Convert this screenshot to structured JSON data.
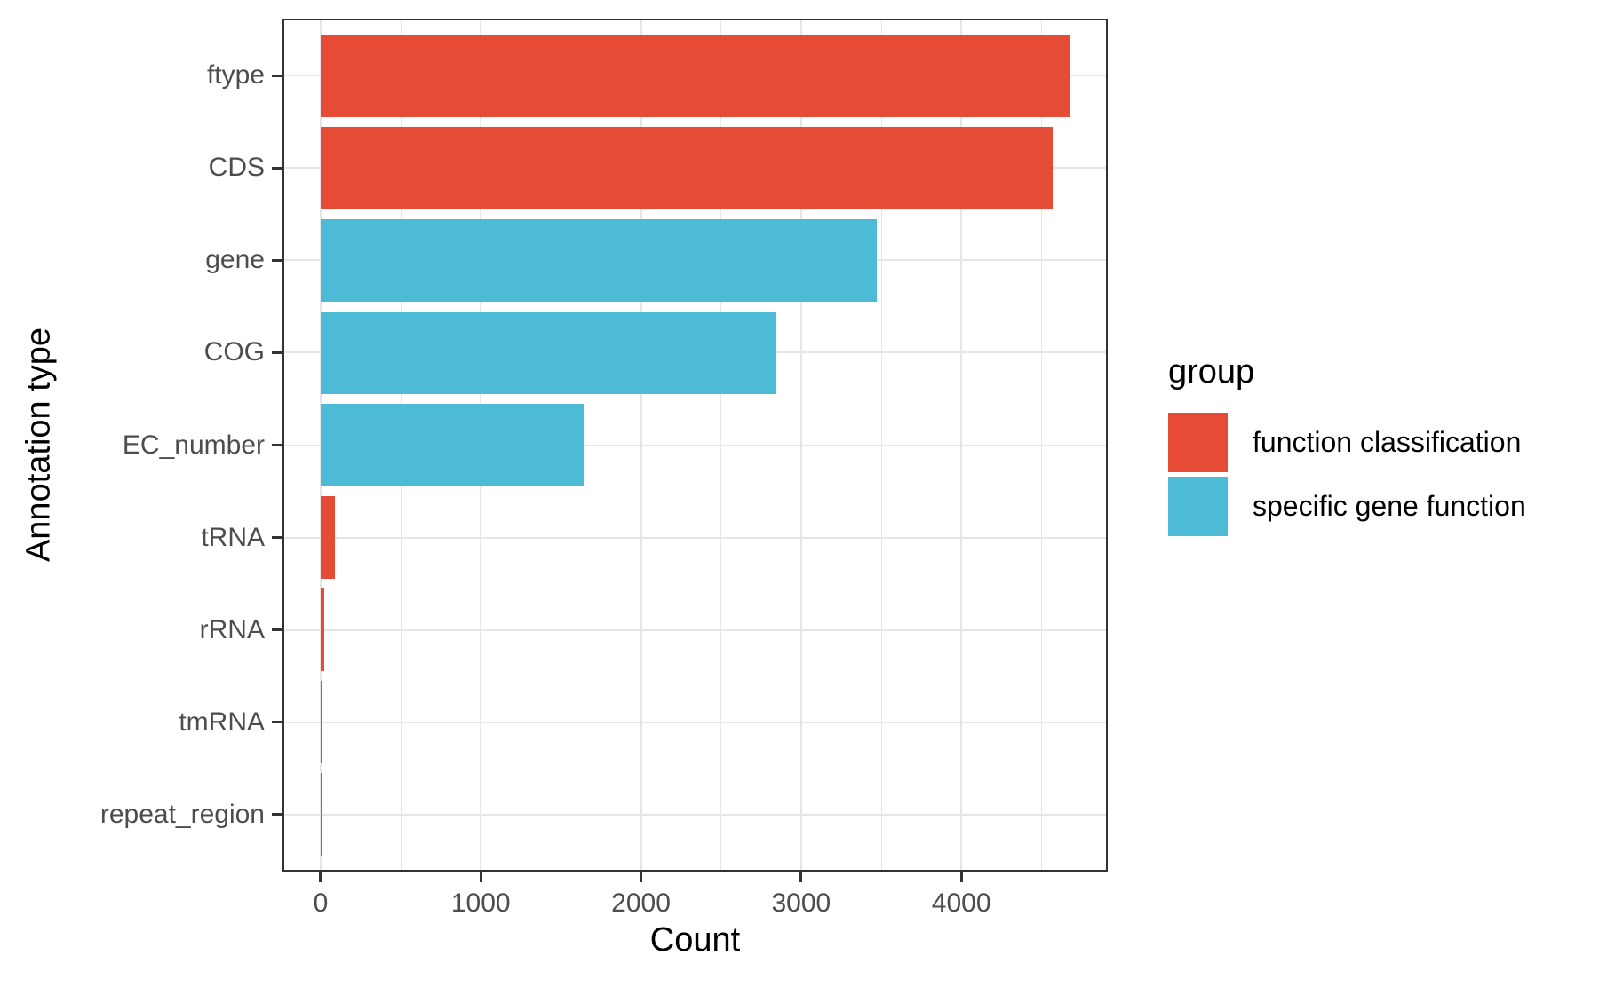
{
  "chart_data": {
    "type": "bar",
    "orientation": "horizontal",
    "title": "",
    "xlabel": "Count",
    "ylabel": "Annotation type",
    "categories": [
      "ftype",
      "CDS",
      "gene",
      "COG",
      "EC_number",
      "tRNA",
      "rRNA",
      "tmRNA",
      "repeat_region"
    ],
    "values": [
      4680,
      4570,
      3470,
      2840,
      1640,
      87,
      22,
      1,
      1
    ],
    "groups": [
      "function classification",
      "function classification",
      "specific gene function",
      "specific gene function",
      "specific gene function",
      "function classification",
      "function classification",
      "function classification",
      "function classification"
    ],
    "group_colors": {
      "function classification": "#E64B35",
      "specific gene function": "#4DBBD5"
    },
    "x_ticks": [
      0,
      1000,
      2000,
      3000,
      4000
    ],
    "x_minor_ticks": [
      500,
      1500,
      2500,
      3500,
      4500
    ],
    "xlim": [
      -227,
      4903
    ],
    "grid": true,
    "panel_border_color": "#333333",
    "grid_color": "#E6E6E6",
    "tick_label_color": "#4D4D4D",
    "legend": {
      "title": "group",
      "position": "right",
      "entries": [
        {
          "label": "function classification",
          "color": "#E64B35"
        },
        {
          "label": "specific gene function",
          "color": "#4DBBD5"
        }
      ]
    }
  }
}
